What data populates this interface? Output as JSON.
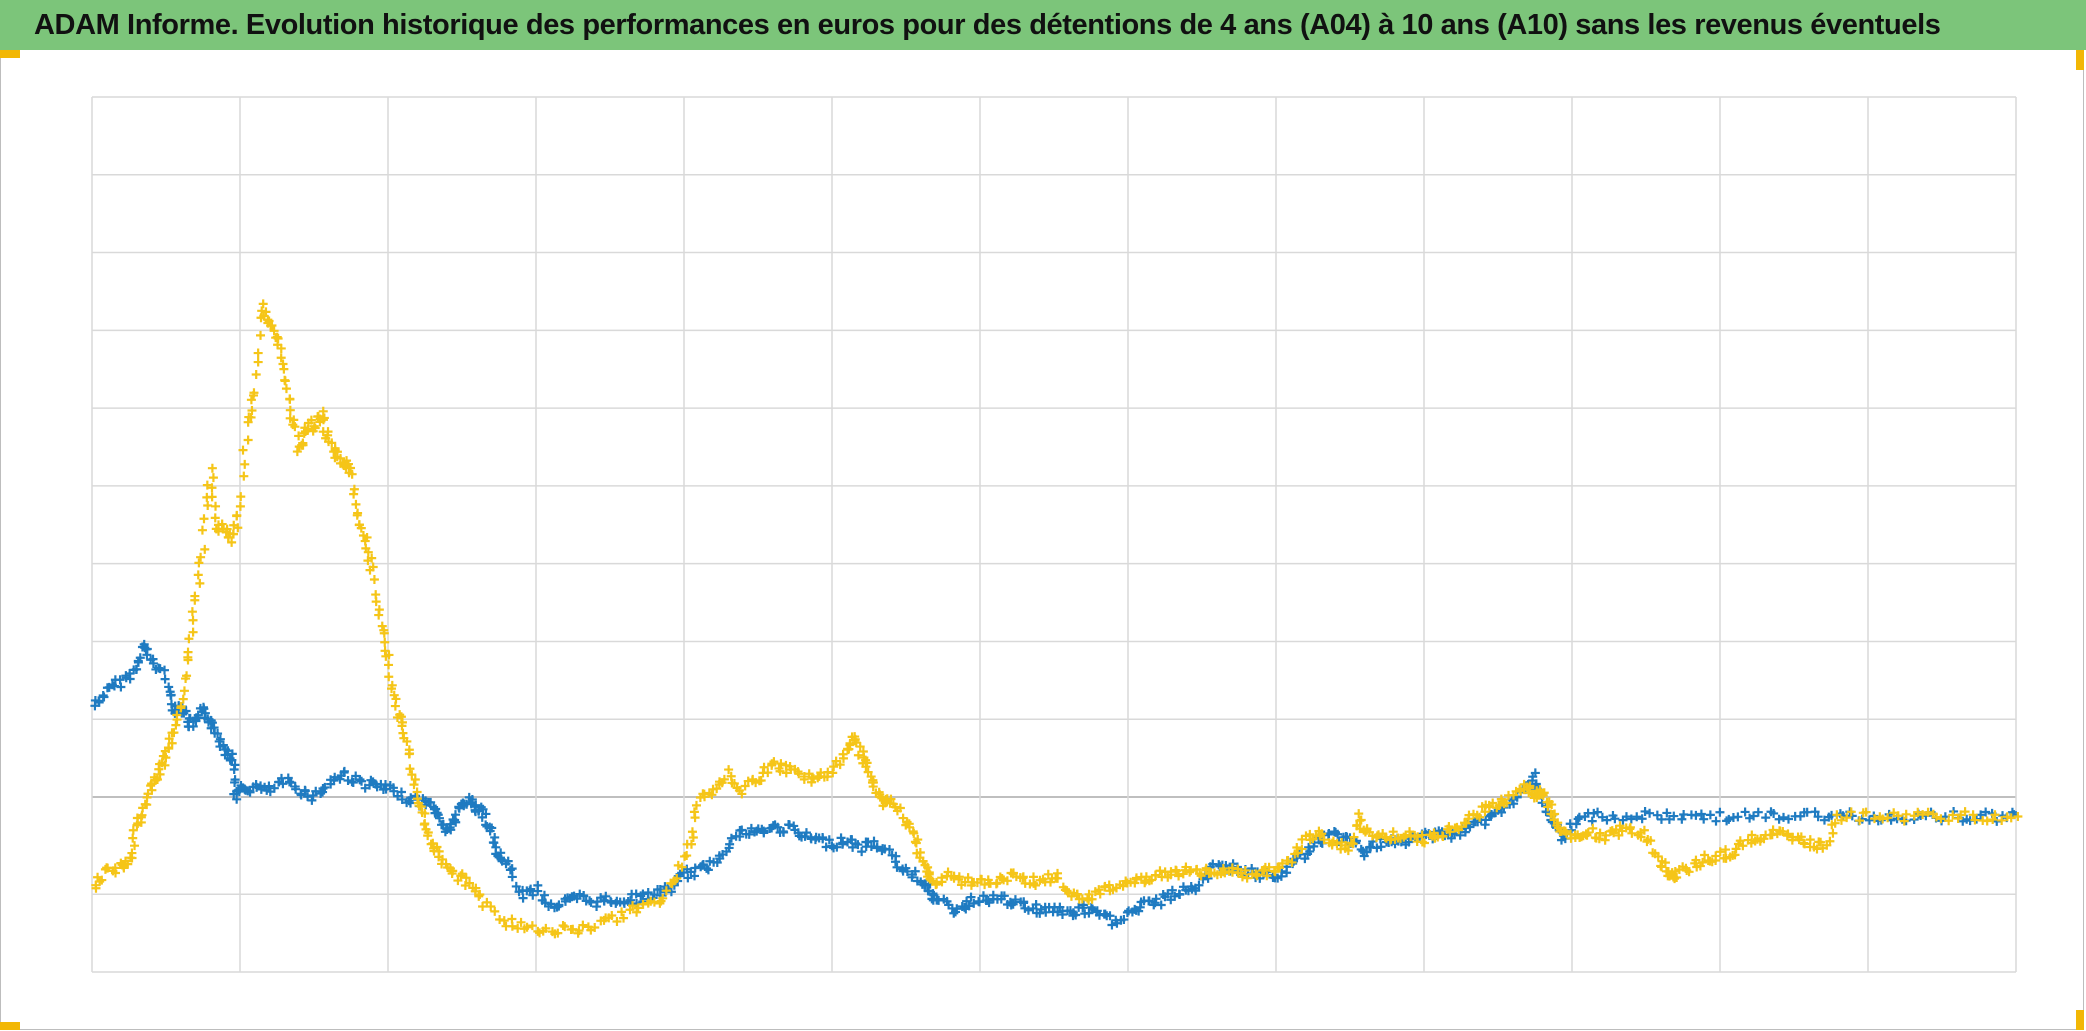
{
  "header": {
    "title": "ADAM Informe. Evolution historique des performances en euros pour des détentions de 4 ans (A04) à 10 ans (A10) sans les revenus éventuels",
    "background_color": "#7cc57a"
  },
  "colors": {
    "gridline": "#d9d9d9",
    "zero_line": "#bfbfbf",
    "accent_corner": "#f2b705"
  },
  "chart_data": {
    "type": "scatter",
    "marker": "plus",
    "title": "ADAM Informe. Evolution historique des performances en euros pour des détentions de 4 ans (A04) à 10 ans (A10) sans les revenus éventuels",
    "xlabel": "",
    "ylabel": "",
    "x_range": [
      0,
      13
    ],
    "y_range": [
      -2.25,
      9
    ],
    "x_gridlines": 13,
    "y_gridlines": [
      -2.25,
      -1.25,
      0,
      1,
      2,
      3,
      4,
      5,
      6,
      7,
      8,
      9
    ],
    "zero_line": 0,
    "grid": true,
    "legend": "none",
    "series": [
      {
        "color": "#1f7bc1",
        "points": [
          [
            0.02,
            1.18
          ],
          [
            0.1,
            1.35
          ],
          [
            0.2,
            1.5
          ],
          [
            0.3,
            1.62
          ],
          [
            0.35,
            1.95
          ],
          [
            0.4,
            1.75
          ],
          [
            0.5,
            1.55
          ],
          [
            0.55,
            1.1
          ],
          [
            0.6,
            1.2
          ],
          [
            0.65,
            0.95
          ],
          [
            0.7,
            0.95
          ],
          [
            0.75,
            1.1
          ],
          [
            0.8,
            1.0
          ],
          [
            0.85,
            0.8
          ],
          [
            0.9,
            0.6
          ],
          [
            0.95,
            0.5
          ],
          [
            0.97,
            0.02
          ],
          [
            1.02,
            0.1
          ],
          [
            1.1,
            0.12
          ],
          [
            1.2,
            0.08
          ],
          [
            1.3,
            0.2
          ],
          [
            1.4,
            0.1
          ],
          [
            1.5,
            0.0
          ],
          [
            1.6,
            0.18
          ],
          [
            1.7,
            0.3
          ],
          [
            1.8,
            0.2
          ],
          [
            1.9,
            0.15
          ],
          [
            2.0,
            0.1
          ],
          [
            2.1,
            0.0
          ],
          [
            2.2,
            -0.05
          ],
          [
            2.3,
            -0.1
          ],
          [
            2.35,
            -0.25
          ],
          [
            2.4,
            -0.45
          ],
          [
            2.45,
            -0.3
          ],
          [
            2.5,
            -0.1
          ],
          [
            2.55,
            -0.05
          ],
          [
            2.6,
            -0.15
          ],
          [
            2.65,
            -0.2
          ],
          [
            2.7,
            -0.5
          ],
          [
            2.75,
            -0.75
          ],
          [
            2.8,
            -0.85
          ],
          [
            2.9,
            -1.25
          ],
          [
            3.0,
            -1.2
          ],
          [
            3.1,
            -1.4
          ],
          [
            3.2,
            -1.35
          ],
          [
            3.3,
            -1.3
          ],
          [
            3.4,
            -1.35
          ],
          [
            3.5,
            -1.32
          ],
          [
            3.6,
            -1.32
          ],
          [
            3.7,
            -1.3
          ],
          [
            3.8,
            -1.25
          ],
          [
            3.9,
            -1.2
          ],
          [
            4.0,
            -1.0
          ],
          [
            4.1,
            -0.95
          ],
          [
            4.2,
            -0.85
          ],
          [
            4.3,
            -0.6
          ],
          [
            4.4,
            -0.45
          ],
          [
            4.5,
            -0.45
          ],
          [
            4.6,
            -0.4
          ],
          [
            4.7,
            -0.4
          ],
          [
            4.8,
            -0.5
          ],
          [
            4.9,
            -0.55
          ],
          [
            5.0,
            -0.6
          ],
          [
            5.1,
            -0.55
          ],
          [
            5.2,
            -0.65
          ],
          [
            5.3,
            -0.6
          ],
          [
            5.4,
            -0.75
          ],
          [
            5.5,
            -0.95
          ],
          [
            5.6,
            -1.05
          ],
          [
            5.65,
            -1.15
          ],
          [
            5.7,
            -1.3
          ],
          [
            5.8,
            -1.45
          ],
          [
            5.9,
            -1.4
          ],
          [
            6.0,
            -1.3
          ],
          [
            6.1,
            -1.3
          ],
          [
            6.2,
            -1.35
          ],
          [
            6.3,
            -1.4
          ],
          [
            6.4,
            -1.45
          ],
          [
            6.5,
            -1.45
          ],
          [
            6.6,
            -1.5
          ],
          [
            6.7,
            -1.45
          ],
          [
            6.8,
            -1.5
          ],
          [
            6.9,
            -1.6
          ],
          [
            7.0,
            -1.5
          ],
          [
            7.1,
            -1.4
          ],
          [
            7.2,
            -1.35
          ],
          [
            7.3,
            -1.25
          ],
          [
            7.4,
            -1.2
          ],
          [
            7.5,
            -1.1
          ],
          [
            7.6,
            -0.85
          ],
          [
            7.7,
            -0.9
          ],
          [
            7.8,
            -0.95
          ],
          [
            7.9,
            -1.0
          ],
          [
            8.0,
            -1.05
          ],
          [
            8.1,
            -0.9
          ],
          [
            8.2,
            -0.7
          ],
          [
            8.3,
            -0.55
          ],
          [
            8.4,
            -0.5
          ],
          [
            8.5,
            -0.55
          ],
          [
            8.6,
            -0.7
          ],
          [
            8.7,
            -0.6
          ],
          [
            8.8,
            -0.6
          ],
          [
            8.9,
            -0.55
          ],
          [
            9.0,
            -0.5
          ],
          [
            9.1,
            -0.45
          ],
          [
            9.2,
            -0.5
          ],
          [
            9.3,
            -0.4
          ],
          [
            9.4,
            -0.3
          ],
          [
            9.5,
            -0.2
          ],
          [
            9.6,
            -0.05
          ],
          [
            9.7,
            0.1
          ],
          [
            9.75,
            0.25
          ],
          [
            9.8,
            0.0
          ],
          [
            9.85,
            -0.3
          ],
          [
            9.9,
            -0.4
          ],
          [
            9.95,
            -0.55
          ],
          [
            10.05,
            -0.25
          ],
          [
            10.2,
            -0.25
          ],
          [
            10.4,
            -0.25
          ],
          [
            10.6,
            -0.25
          ],
          [
            10.8,
            -0.25
          ],
          [
            11.0,
            -0.25
          ],
          [
            11.2,
            -0.25
          ],
          [
            11.4,
            -0.25
          ],
          [
            11.6,
            -0.25
          ],
          [
            11.8,
            -0.25
          ],
          [
            12.0,
            -0.25
          ],
          [
            12.2,
            -0.25
          ],
          [
            12.4,
            -0.25
          ],
          [
            12.6,
            -0.25
          ],
          [
            12.8,
            -0.25
          ],
          [
            13.0,
            -0.25
          ]
        ]
      },
      {
        "color": "#f5c518",
        "points": [
          [
            0.02,
            -1.15
          ],
          [
            0.1,
            -0.95
          ],
          [
            0.2,
            -0.9
          ],
          [
            0.25,
            -0.8
          ],
          [
            0.3,
            -0.4
          ],
          [
            0.35,
            -0.2
          ],
          [
            0.4,
            0.15
          ],
          [
            0.45,
            0.3
          ],
          [
            0.5,
            0.5
          ],
          [
            0.55,
            0.8
          ],
          [
            0.6,
            1.2
          ],
          [
            0.65,
            1.8
          ],
          [
            0.7,
            2.5
          ],
          [
            0.75,
            3.2
          ],
          [
            0.8,
            4.2
          ],
          [
            0.85,
            3.5
          ],
          [
            0.9,
            3.4
          ],
          [
            0.95,
            3.3
          ],
          [
            1.0,
            3.7
          ],
          [
            1.05,
            4.8
          ],
          [
            1.1,
            5.2
          ],
          [
            1.15,
            6.3
          ],
          [
            1.2,
            6.1
          ],
          [
            1.25,
            5.9
          ],
          [
            1.3,
            5.4
          ],
          [
            1.35,
            4.9
          ],
          [
            1.4,
            4.5
          ],
          [
            1.45,
            4.7
          ],
          [
            1.5,
            4.8
          ],
          [
            1.55,
            4.9
          ],
          [
            1.6,
            4.6
          ],
          [
            1.65,
            4.4
          ],
          [
            1.7,
            4.3
          ],
          [
            1.75,
            4.2
          ],
          [
            1.8,
            3.6
          ],
          [
            1.85,
            3.3
          ],
          [
            1.9,
            2.9
          ],
          [
            1.95,
            2.2
          ],
          [
            2.0,
            1.8
          ],
          [
            2.05,
            1.2
          ],
          [
            2.1,
            0.9
          ],
          [
            2.15,
            0.5
          ],
          [
            2.2,
            0.0
          ],
          [
            2.25,
            -0.3
          ],
          [
            2.3,
            -0.6
          ],
          [
            2.35,
            -0.8
          ],
          [
            2.45,
            -1.0
          ],
          [
            2.55,
            -1.1
          ],
          [
            2.65,
            -1.35
          ],
          [
            2.8,
            -1.6
          ],
          [
            2.95,
            -1.7
          ],
          [
            3.1,
            -1.72
          ],
          [
            3.25,
            -1.7
          ],
          [
            3.4,
            -1.65
          ],
          [
            3.55,
            -1.55
          ],
          [
            3.7,
            -1.4
          ],
          [
            3.85,
            -1.3
          ],
          [
            3.95,
            -1.0
          ],
          [
            4.05,
            -0.6
          ],
          [
            4.1,
            0.0
          ],
          [
            4.2,
            0.1
          ],
          [
            4.3,
            0.3
          ],
          [
            4.4,
            0.1
          ],
          [
            4.5,
            0.25
          ],
          [
            4.6,
            0.4
          ],
          [
            4.7,
            0.35
          ],
          [
            4.8,
            0.3
          ],
          [
            4.9,
            0.2
          ],
          [
            5.0,
            0.35
          ],
          [
            5.1,
            0.6
          ],
          [
            5.15,
            0.75
          ],
          [
            5.2,
            0.55
          ],
          [
            5.25,
            0.35
          ],
          [
            5.3,
            0.1
          ],
          [
            5.35,
            -0.1
          ],
          [
            5.4,
            0.0
          ],
          [
            5.5,
            -0.3
          ],
          [
            5.55,
            -0.5
          ],
          [
            5.6,
            -0.8
          ],
          [
            5.65,
            -1.0
          ],
          [
            5.7,
            -1.1
          ],
          [
            5.8,
            -1.0
          ],
          [
            5.9,
            -1.1
          ],
          [
            6.0,
            -1.05
          ],
          [
            6.1,
            -1.1
          ],
          [
            6.2,
            -1.0
          ],
          [
            6.3,
            -1.05
          ],
          [
            6.4,
            -1.1
          ],
          [
            6.5,
            -1.0
          ],
          [
            6.6,
            -1.2
          ],
          [
            6.7,
            -1.3
          ],
          [
            6.8,
            -1.25
          ],
          [
            6.9,
            -1.15
          ],
          [
            7.0,
            -1.1
          ],
          [
            7.1,
            -1.05
          ],
          [
            7.2,
            -1.0
          ],
          [
            7.3,
            -1.0
          ],
          [
            7.4,
            -0.95
          ],
          [
            7.5,
            -0.95
          ],
          [
            7.6,
            -1.0
          ],
          [
            7.7,
            -0.95
          ],
          [
            7.8,
            -1.0
          ],
          [
            7.9,
            -0.95
          ],
          [
            8.0,
            -0.95
          ],
          [
            8.1,
            -0.8
          ],
          [
            8.2,
            -0.55
          ],
          [
            8.3,
            -0.5
          ],
          [
            8.4,
            -0.6
          ],
          [
            8.5,
            -0.7
          ],
          [
            8.55,
            -0.25
          ],
          [
            8.6,
            -0.45
          ],
          [
            8.7,
            -0.5
          ],
          [
            8.8,
            -0.5
          ],
          [
            8.9,
            -0.5
          ],
          [
            9.0,
            -0.55
          ],
          [
            9.1,
            -0.5
          ],
          [
            9.2,
            -0.4
          ],
          [
            9.3,
            -0.3
          ],
          [
            9.4,
            -0.15
          ],
          [
            9.5,
            -0.1
          ],
          [
            9.6,
            0.0
          ],
          [
            9.7,
            0.15
          ],
          [
            9.75,
            0.0
          ],
          [
            9.8,
            0.1
          ],
          [
            9.85,
            -0.1
          ],
          [
            9.9,
            -0.3
          ],
          [
            9.95,
            -0.5
          ],
          [
            10.05,
            -0.5
          ],
          [
            10.1,
            -0.45
          ],
          [
            10.2,
            -0.5
          ],
          [
            10.3,
            -0.45
          ],
          [
            10.4,
            -0.4
          ],
          [
            10.5,
            -0.5
          ],
          [
            10.6,
            -0.85
          ],
          [
            10.65,
            -0.95
          ],
          [
            10.7,
            -1.0
          ],
          [
            10.8,
            -0.9
          ],
          [
            10.9,
            -0.8
          ],
          [
            11.0,
            -0.75
          ],
          [
            11.1,
            -0.7
          ],
          [
            11.2,
            -0.55
          ],
          [
            11.3,
            -0.5
          ],
          [
            11.4,
            -0.45
          ],
          [
            11.5,
            -0.55
          ],
          [
            11.6,
            -0.6
          ],
          [
            11.7,
            -0.65
          ],
          [
            11.8,
            -0.25
          ],
          [
            12.0,
            -0.25
          ],
          [
            12.2,
            -0.25
          ],
          [
            12.4,
            -0.25
          ],
          [
            12.6,
            -0.25
          ],
          [
            12.8,
            -0.25
          ],
          [
            13.0,
            -0.25
          ]
        ]
      }
    ]
  }
}
